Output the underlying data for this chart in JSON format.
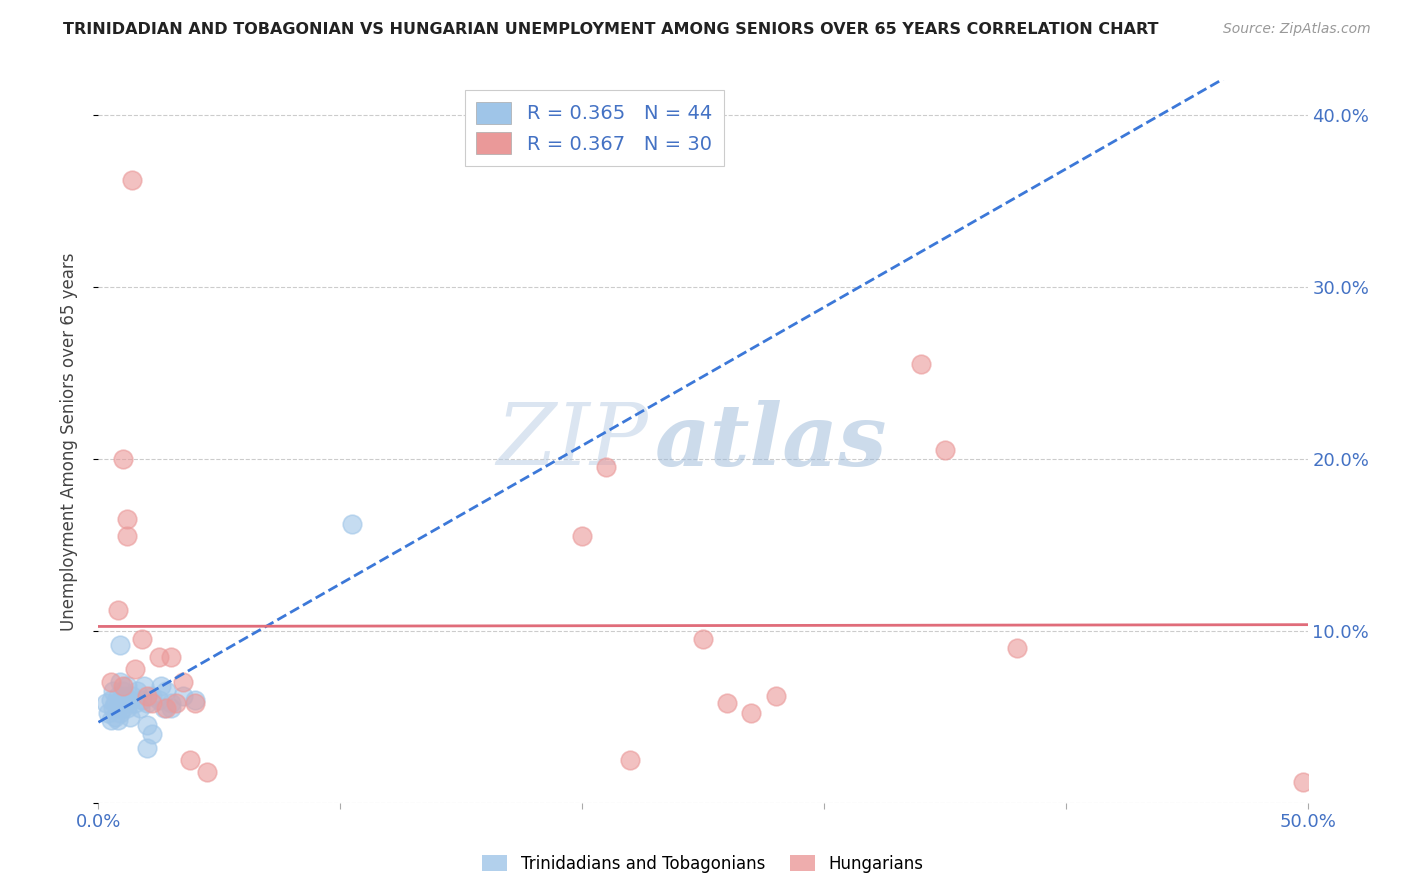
{
  "title": "TRINIDADIAN AND TOBAGONIAN VS HUNGARIAN UNEMPLOYMENT AMONG SENIORS OVER 65 YEARS CORRELATION CHART",
  "source": "Source: ZipAtlas.com",
  "ylabel": "Unemployment Among Seniors over 65 years",
  "xlim": [
    0.0,
    0.5
  ],
  "ylim": [
    0.0,
    0.42
  ],
  "xticks": [
    0.0,
    0.1,
    0.2,
    0.3,
    0.4,
    0.5
  ],
  "yticks": [
    0.0,
    0.1,
    0.2,
    0.3,
    0.4
  ],
  "xticklabels": [
    "0.0%",
    "",
    "",
    "",
    "",
    "50.0%"
  ],
  "yticklabels_right": [
    "",
    "10.0%",
    "20.0%",
    "30.0%",
    "40.0%"
  ],
  "watermark_zip": "ZIP",
  "watermark_atlas": "atlas",
  "legend1_R": "0.365",
  "legend1_N": "44",
  "legend2_R": "0.367",
  "legend2_N": "30",
  "blue_color": "#9fc5e8",
  "pink_color": "#ea9999",
  "blue_line_color": "#3c78d8",
  "pink_line_color": "#e06c7a",
  "blue_scatter": [
    [
      0.003,
      0.058
    ],
    [
      0.004,
      0.052
    ],
    [
      0.005,
      0.06
    ],
    [
      0.005,
      0.048
    ],
    [
      0.006,
      0.065
    ],
    [
      0.006,
      0.055
    ],
    [
      0.007,
      0.05
    ],
    [
      0.007,
      0.058
    ],
    [
      0.008,
      0.062
    ],
    [
      0.008,
      0.055
    ],
    [
      0.008,
      0.048
    ],
    [
      0.009,
      0.07
    ],
    [
      0.009,
      0.058
    ],
    [
      0.009,
      0.052
    ],
    [
      0.01,
      0.065
    ],
    [
      0.01,
      0.06
    ],
    [
      0.01,
      0.055
    ],
    [
      0.011,
      0.062
    ],
    [
      0.011,
      0.058
    ],
    [
      0.012,
      0.068
    ],
    [
      0.012,
      0.055
    ],
    [
      0.013,
      0.06
    ],
    [
      0.013,
      0.05
    ],
    [
      0.014,
      0.062
    ],
    [
      0.015,
      0.058
    ],
    [
      0.016,
      0.065
    ],
    [
      0.017,
      0.055
    ],
    [
      0.018,
      0.06
    ],
    [
      0.019,
      0.068
    ],
    [
      0.02,
      0.058
    ],
    [
      0.02,
      0.045
    ],
    [
      0.022,
      0.04
    ],
    [
      0.022,
      0.062
    ],
    [
      0.025,
      0.06
    ],
    [
      0.026,
      0.068
    ],
    [
      0.027,
      0.055
    ],
    [
      0.028,
      0.065
    ],
    [
      0.03,
      0.058
    ],
    [
      0.035,
      0.062
    ],
    [
      0.04,
      0.06
    ],
    [
      0.009,
      0.092
    ],
    [
      0.03,
      0.055
    ],
    [
      0.105,
      0.162
    ],
    [
      0.02,
      0.032
    ]
  ],
  "pink_scatter": [
    [
      0.005,
      0.07
    ],
    [
      0.008,
      0.112
    ],
    [
      0.01,
      0.068
    ],
    [
      0.01,
      0.2
    ],
    [
      0.012,
      0.165
    ],
    [
      0.012,
      0.155
    ],
    [
      0.014,
      0.362
    ],
    [
      0.015,
      0.078
    ],
    [
      0.018,
      0.095
    ],
    [
      0.02,
      0.062
    ],
    [
      0.022,
      0.058
    ],
    [
      0.025,
      0.085
    ],
    [
      0.028,
      0.055
    ],
    [
      0.03,
      0.085
    ],
    [
      0.032,
      0.058
    ],
    [
      0.035,
      0.07
    ],
    [
      0.038,
      0.025
    ],
    [
      0.04,
      0.058
    ],
    [
      0.045,
      0.018
    ],
    [
      0.2,
      0.155
    ],
    [
      0.21,
      0.195
    ],
    [
      0.22,
      0.025
    ],
    [
      0.25,
      0.095
    ],
    [
      0.26,
      0.058
    ],
    [
      0.27,
      0.052
    ],
    [
      0.28,
      0.062
    ],
    [
      0.34,
      0.255
    ],
    [
      0.35,
      0.205
    ],
    [
      0.38,
      0.09
    ],
    [
      0.498,
      0.012
    ]
  ],
  "background_color": "#ffffff",
  "grid_color": "#cccccc",
  "title_color": "#222222",
  "axis_label_color": "#444444",
  "tick_color_blue": "#4472c4",
  "legend_R_color": "#4472c4",
  "legend_N_color": "#4472c4"
}
